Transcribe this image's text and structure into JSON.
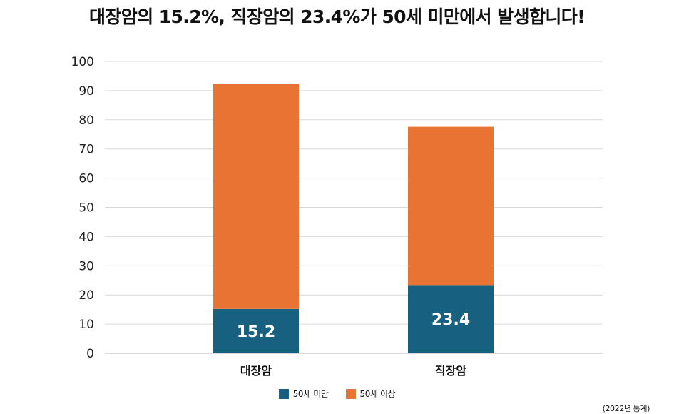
{
  "chart_data": {
    "type": "bar",
    "stacked": true,
    "title": "대장암의 15.2%, 직장암의 23.4%가 50세 미만에서 발생합니다!",
    "categories": [
      "대장암",
      "직장암"
    ],
    "series": [
      {
        "name": "50세 미만",
        "color": "#17607f",
        "values": [
          15.2,
          23.4
        ],
        "labels": [
          "15.2",
          "23.4"
        ]
      },
      {
        "name": "50세 이상",
        "color": "#e97333",
        "values": [
          77.2,
          54.2
        ]
      }
    ],
    "ylim": [
      0,
      100
    ],
    "yticks": [
      "0",
      "10",
      "20",
      "30",
      "40",
      "50",
      "60",
      "70",
      "80",
      "90",
      "100"
    ],
    "grid": true,
    "legend_position": "bottom"
  },
  "source_note": "(2022년 통계)"
}
